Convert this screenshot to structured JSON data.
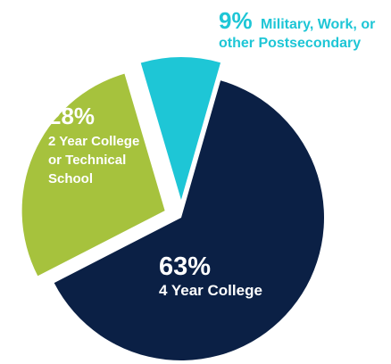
{
  "chart_data": {
    "type": "pie",
    "title": "",
    "slices": [
      {
        "value": 63,
        "pct_label": "63%",
        "label_lines": [
          "4 Year College"
        ],
        "color": "#0b2045",
        "label_color": "#ffffff",
        "exploded": false
      },
      {
        "value": 28,
        "pct_label": "28%",
        "label_lines": [
          "2 Year College",
          "or Technical",
          "School"
        ],
        "color": "#a6c23d",
        "label_color": "#ffffff",
        "exploded": true
      },
      {
        "value": 9,
        "pct_label": "9%",
        "label_lines": [
          "Military, Work, or",
          "other Postsecondary"
        ],
        "color": "#1ec6d6",
        "label_color": "#1ec6d6",
        "exploded": true
      }
    ],
    "legend": "none",
    "grid": false
  }
}
